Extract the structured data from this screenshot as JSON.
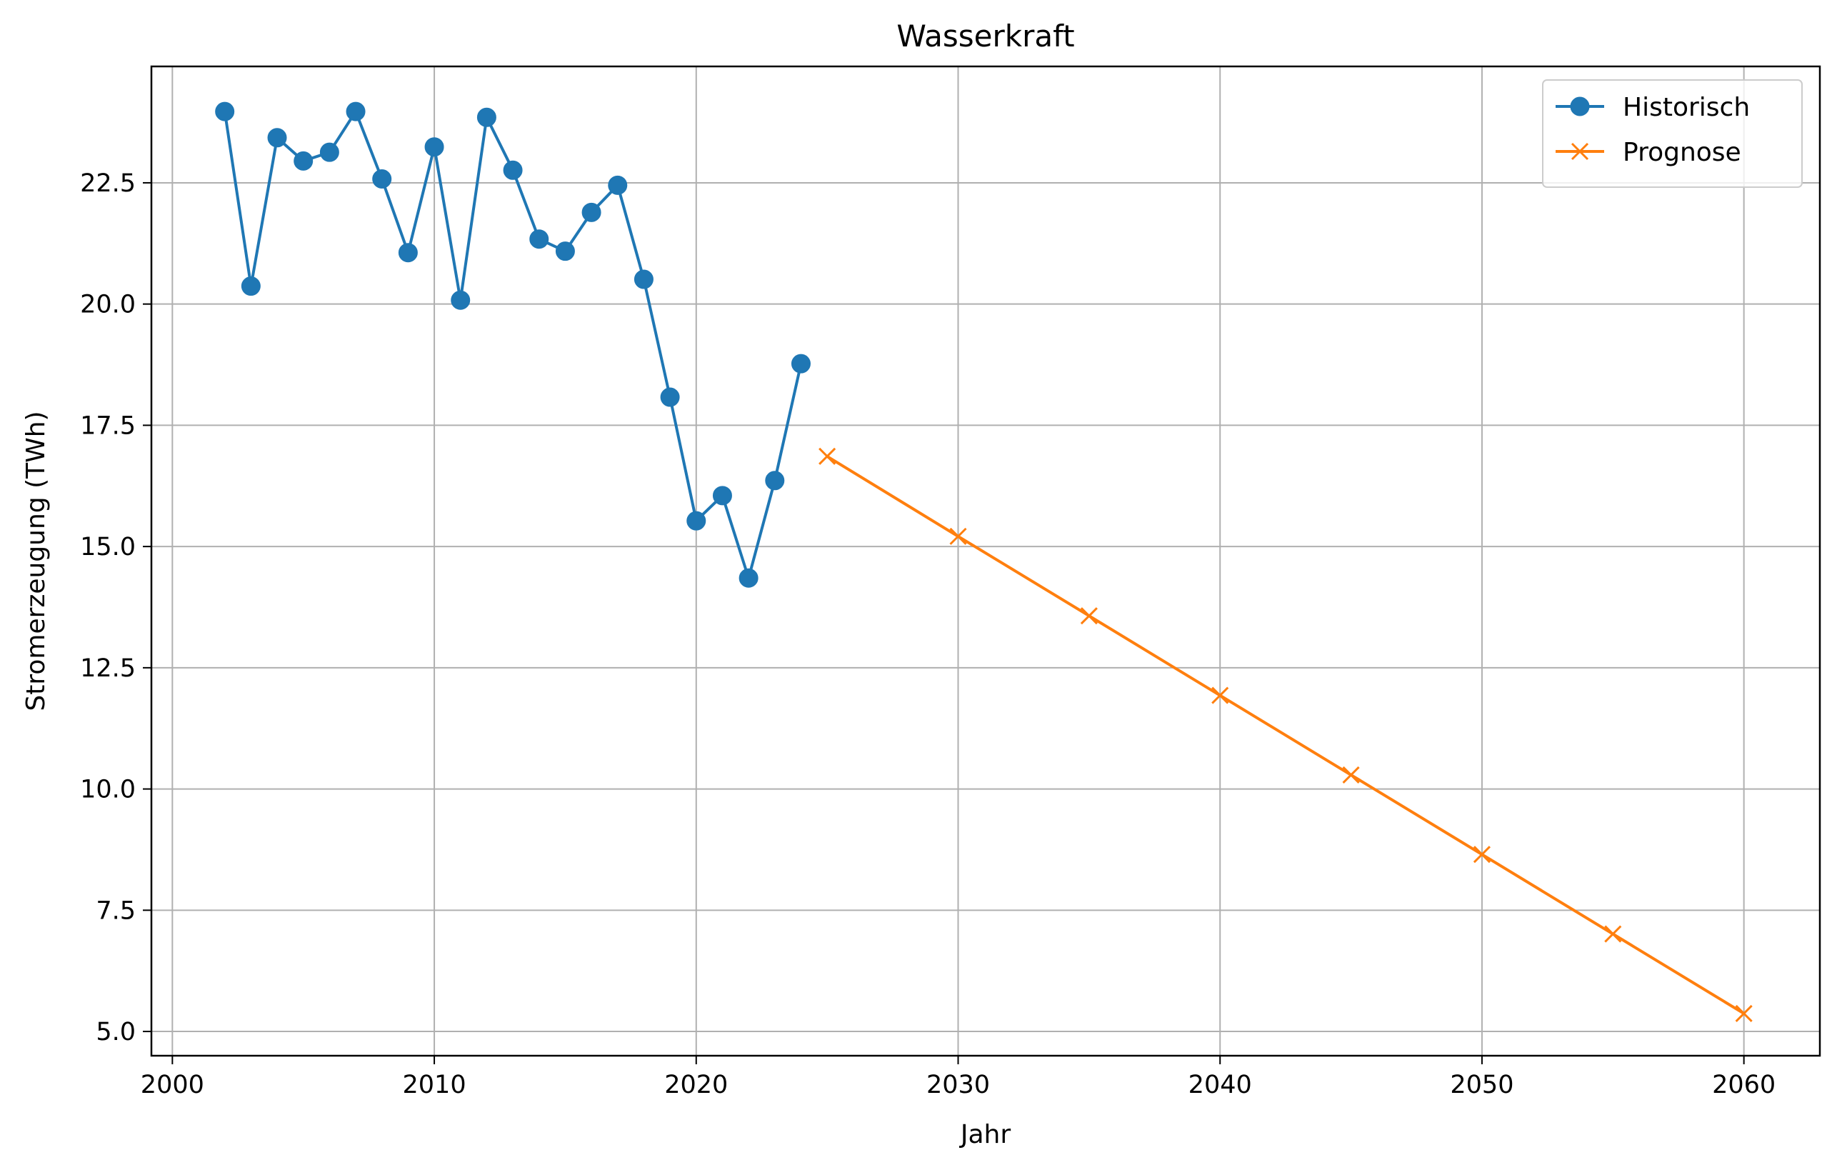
{
  "chart_data": {
    "type": "line",
    "title": "Wasserkraft",
    "xlabel": "Jahr",
    "ylabel": "Stromerzeugung (TWh)",
    "xlim": [
      1999.2,
      2062.9
    ],
    "ylim": [
      4.5,
      24.9
    ],
    "x_ticks": [
      2000,
      2010,
      2020,
      2030,
      2040,
      2050,
      2060
    ],
    "x_tick_labels": [
      "2000",
      "2010",
      "2020",
      "2030",
      "2040",
      "2050",
      "2060"
    ],
    "y_ticks": [
      5.0,
      7.5,
      10.0,
      12.5,
      15.0,
      17.5,
      20.0,
      22.5
    ],
    "y_tick_labels": [
      "5.0",
      "7.5",
      "10.0",
      "12.5",
      "15.0",
      "17.5",
      "20.0",
      "22.5"
    ],
    "grid": true,
    "legend_position": "top-right",
    "series": [
      {
        "name": "Historisch",
        "color": "#1f77b4",
        "marker": "circle",
        "x": [
          2002,
          2003,
          2004,
          2005,
          2006,
          2007,
          2008,
          2009,
          2010,
          2011,
          2012,
          2013,
          2014,
          2015,
          2016,
          2017,
          2018,
          2019,
          2020,
          2021,
          2022,
          2023,
          2024
        ],
        "y": [
          23.97,
          20.37,
          23.43,
          22.95,
          23.13,
          23.97,
          22.58,
          21.06,
          23.24,
          20.08,
          23.85,
          22.76,
          21.34,
          21.09,
          21.89,
          22.45,
          20.51,
          18.08,
          15.53,
          16.05,
          14.35,
          16.36,
          18.77
        ]
      },
      {
        "name": "Prognose",
        "color": "#ff7f0e",
        "marker": "x",
        "x": [
          2025,
          2030,
          2035,
          2040,
          2045,
          2050,
          2055,
          2060
        ],
        "y": [
          16.86,
          15.21,
          13.57,
          11.93,
          10.29,
          8.65,
          7.01,
          5.37
        ]
      }
    ]
  }
}
